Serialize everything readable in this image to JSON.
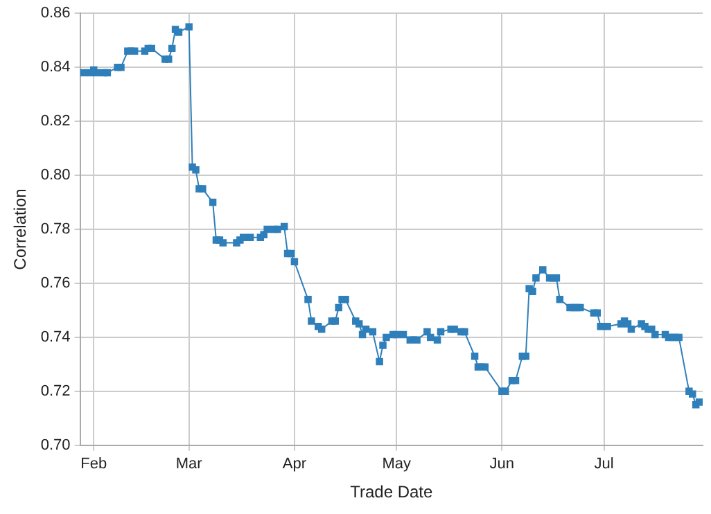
{
  "chart_data": {
    "type": "line",
    "xlabel": "Trade Date",
    "ylabel": "Correlation",
    "xlim": [
      "--01-28",
      "--07-30"
    ],
    "xticks": [
      {
        "value": "--02-01",
        "label": "Feb"
      },
      {
        "value": "--03-01",
        "label": "Mar"
      },
      {
        "value": "--04-01",
        "label": "Apr"
      },
      {
        "value": "--05-01",
        "label": "May"
      },
      {
        "value": "--06-01",
        "label": "Jun"
      },
      {
        "value": "--07-01",
        "label": "Jul"
      }
    ],
    "ylim": [
      0.7,
      0.86
    ],
    "yticks": [
      {
        "value": 0.7,
        "label": "0.70"
      },
      {
        "value": 0.72,
        "label": "0.72"
      },
      {
        "value": 0.74,
        "label": "0.74"
      },
      {
        "value": 0.76,
        "label": "0.76"
      },
      {
        "value": 0.78,
        "label": "0.78"
      },
      {
        "value": 0.8,
        "label": "0.80"
      },
      {
        "value": 0.82,
        "label": "0.82"
      },
      {
        "value": 0.84,
        "label": "0.84"
      },
      {
        "value": 0.86,
        "label": "0.86"
      }
    ],
    "grid": true,
    "marker": "square",
    "line_style": "solid",
    "x": [
      "--01-29",
      "--01-31",
      "--02-01",
      "--02-02",
      "--02-04",
      "--02-05",
      "--02-08",
      "--02-09",
      "--02-11",
      "--02-12",
      "--02-13",
      "--02-16",
      "--02-17",
      "--02-18",
      "--02-22",
      "--02-23",
      "--02-24",
      "--02-25",
      "--02-26",
      "--03-01",
      "--03-02",
      "--03-03",
      "--03-04",
      "--03-05",
      "--03-08",
      "--03-09",
      "--03-10",
      "--03-11",
      "--03-15",
      "--03-16",
      "--03-17",
      "--03-19",
      "--03-22",
      "--03-23",
      "--03-24",
      "--03-26",
      "--03-27",
      "--03-29",
      "--03-30",
      "--03-31",
      "--04-01",
      "--04-05",
      "--04-06",
      "--04-08",
      "--04-09",
      "--04-12",
      "--04-13",
      "--04-14",
      "--04-15",
      "--04-16",
      "--04-19",
      "--04-20",
      "--04-21",
      "--04-22",
      "--04-24",
      "--04-26",
      "--04-27",
      "--04-28",
      "--04-30",
      "--05-01",
      "--05-03",
      "--05-05",
      "--05-06",
      "--05-07",
      "--05-10",
      "--05-11",
      "--05-13",
      "--05-14",
      "--05-17",
      "--05-18",
      "--05-20",
      "--05-21",
      "--05-24",
      "--05-25",
      "--05-26",
      "--05-27",
      "--06-01",
      "--06-02",
      "--06-04",
      "--06-05",
      "--06-07",
      "--06-08",
      "--06-09",
      "--06-10",
      "--06-11",
      "--06-13",
      "--06-15",
      "--06-16",
      "--06-17",
      "--06-18",
      "--06-21",
      "--06-22",
      "--06-23",
      "--06-24",
      "--06-28",
      "--06-29",
      "--06-30",
      "--07-02",
      "--07-06",
      "--07-07",
      "--07-08",
      "--07-09",
      "--07-12",
      "--07-13",
      "--07-14",
      "--07-15",
      "--07-16",
      "--07-19",
      "--07-20",
      "--07-21",
      "--07-22",
      "--07-23",
      "--07-26",
      "--07-27",
      "--07-28",
      "--07-29"
    ],
    "series": [
      {
        "color": "#2e7fba",
        "values": [
          0.838,
          0.838,
          0.839,
          0.838,
          0.838,
          0.838,
          0.84,
          0.84,
          0.846,
          0.846,
          0.846,
          0.846,
          0.847,
          0.847,
          0.843,
          0.843,
          0.847,
          0.854,
          0.853,
          0.855,
          0.803,
          0.802,
          0.795,
          0.795,
          0.79,
          0.776,
          0.776,
          0.775,
          0.775,
          0.776,
          0.777,
          0.777,
          0.777,
          0.778,
          0.78,
          0.78,
          0.78,
          0.781,
          0.771,
          0.771,
          0.768,
          0.754,
          0.746,
          0.744,
          0.743,
          0.746,
          0.746,
          0.751,
          0.754,
          0.754,
          0.746,
          0.745,
          0.741,
          0.743,
          0.742,
          0.731,
          0.737,
          0.74,
          0.741,
          0.741,
          0.741,
          0.739,
          0.739,
          0.739,
          0.742,
          0.74,
          0.739,
          0.742,
          0.743,
          0.743,
          0.742,
          0.742,
          0.733,
          0.729,
          0.729,
          0.729,
          0.72,
          0.72,
          0.724,
          0.724,
          0.733,
          0.733,
          0.758,
          0.757,
          0.762,
          0.765,
          0.762,
          0.762,
          0.762,
          0.754,
          0.751,
          0.751,
          0.751,
          0.751,
          0.749,
          0.749,
          0.744,
          0.744,
          0.745,
          0.746,
          0.745,
          0.743,
          0.745,
          0.744,
          0.743,
          0.743,
          0.741,
          0.741,
          0.74,
          0.74,
          0.74,
          0.74,
          0.72,
          0.719,
          0.715,
          0.716
        ]
      }
    ]
  }
}
